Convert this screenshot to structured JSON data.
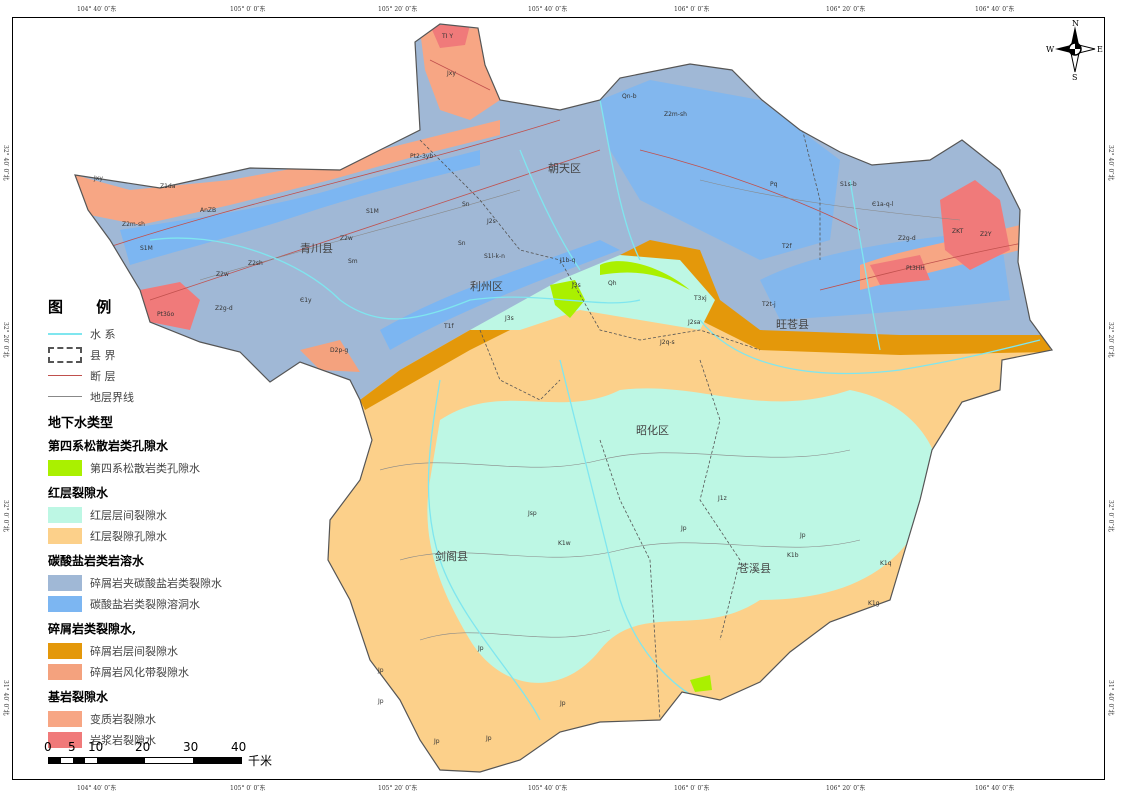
{
  "top_coords": [
    "104° 40′ 0″东",
    "105° 0′ 0″东",
    "105° 20′ 0″东",
    "105° 40′ 0″东",
    "106° 0′ 0″东",
    "106° 20′ 0″东",
    "106° 40′ 0″东"
  ],
  "bottom_coords": [
    "104° 40′ 0″东",
    "105° 0′ 0″东",
    "105° 20′ 0″东",
    "105° 40′ 0″东",
    "106° 0′ 0″东",
    "106° 20′ 0″东",
    "106° 40′ 0″东"
  ],
  "left_coords": [
    "32° 40′ 0″北",
    "32° 20′ 0″北",
    "32° 0′ 0″北",
    "31° 40′ 0″北"
  ],
  "right_coords": [
    "32° 40′ 0″北",
    "32° 20′ 0″北",
    "32° 0′ 0″北",
    "31° 40′ 0″北"
  ],
  "compass": {
    "n": "N",
    "s": "S",
    "e": "E",
    "w": "W"
  },
  "places": [
    "青川县",
    "朝天区",
    "利州区",
    "旺苍县",
    "昭化区",
    "剑阁县",
    "苍溪县"
  ],
  "strata": [
    "TI Y",
    "Jxy",
    "Pt2-3yb",
    "Qn-b",
    "Z2m-sh",
    "Jxy",
    "Z1da",
    "AnZB",
    "Z2m-sh",
    "S1M",
    "S1M",
    "Sn",
    "Sn",
    "Z2w",
    "Z2sh",
    "Z2w",
    "Z2g-d",
    "Pt3δo",
    "Є1y",
    "D2p-g",
    "Sm",
    "J2s",
    "S1l-k-n",
    "J1b-q",
    "J3s",
    "Qh",
    "T1f",
    "J3s",
    "J2q-s",
    "Pq",
    "S1s-b",
    "Є1a-q-l",
    "Z2g-d",
    "ZKT",
    "Z2Y",
    "Pt3HH",
    "T2f",
    "T2t-j",
    "T3xj",
    "J2sa",
    "J1z",
    "Jp",
    "K1b",
    "K1q",
    "K1g",
    "Jsp",
    "Jp",
    "K1w",
    "Jp",
    "Jp",
    "Jp",
    "Jp",
    "Jp",
    "Jp"
  ],
  "legend": {
    "title": "图 例",
    "lines": [
      {
        "label": "水  系",
        "color": "#7fe6ef"
      },
      {
        "label": "县  界",
        "color": "#555555"
      },
      {
        "label": "断  层",
        "color": "#c0504d"
      },
      {
        "label": "地层界线",
        "color": "#888888"
      }
    ],
    "type_title": "地下水类型",
    "categories": [
      {
        "name": "第四系松散岩类孔隙水",
        "items": [
          {
            "label": "第四系松散岩类孔隙水",
            "color": "#aaf000"
          }
        ]
      },
      {
        "name": "红层裂隙水",
        "items": [
          {
            "label": "红层层间裂隙水",
            "color": "#bdf7e4"
          },
          {
            "label": "红层裂隙孔隙水",
            "color": "#fcd08a"
          }
        ]
      },
      {
        "name": "碳酸盐岩类岩溶水",
        "items": [
          {
            "label": "碎屑岩夹碳酸盐岩类裂隙水",
            "color": "#a0b8d6"
          },
          {
            "label": "碳酸盐岩类裂隙溶洞水",
            "color": "#7cb6f2"
          }
        ]
      },
      {
        "name": "碎屑岩类裂隙水,",
        "items": [
          {
            "label": "碎屑岩层间裂隙水",
            "color": "#e4980a"
          },
          {
            "label": "碎屑岩风化带裂隙水",
            "color": "#f4a27e"
          }
        ]
      },
      {
        "name": "基岩裂隙水",
        "items": [
          {
            "label": "变质岩裂隙水",
            "color": "#f7a684"
          },
          {
            "label": "岩浆岩裂隙水",
            "color": "#f07a7a"
          }
        ]
      }
    ]
  },
  "scale": {
    "ticks": [
      "0",
      "5",
      "10",
      "20",
      "30",
      "40"
    ],
    "unit": "千米"
  }
}
